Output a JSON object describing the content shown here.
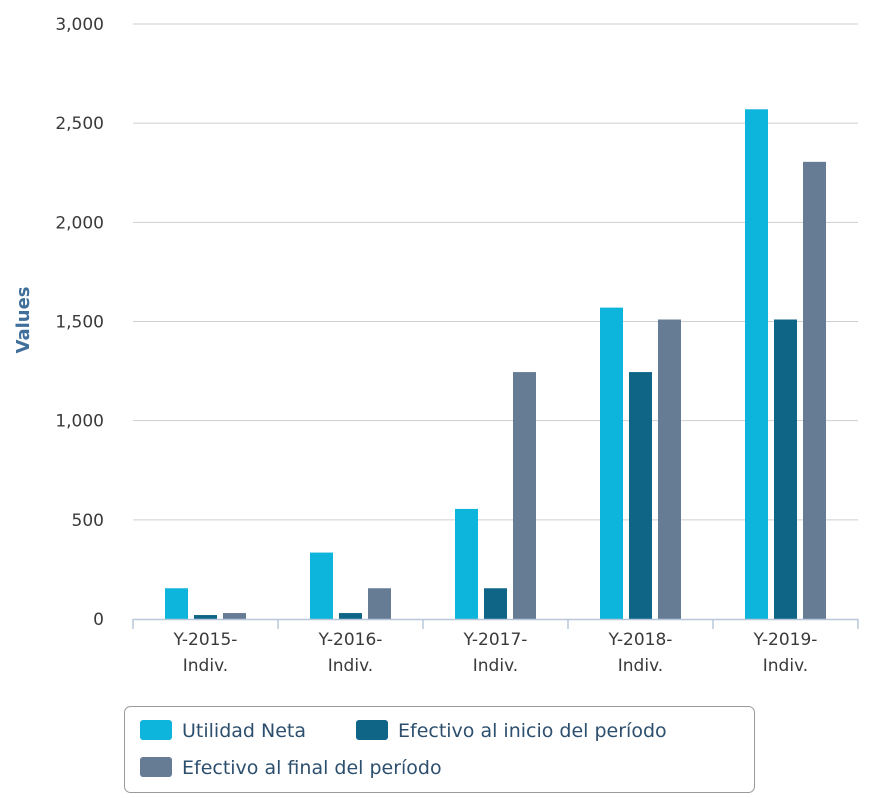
{
  "chart_data": {
    "type": "bar",
    "title": "",
    "xlabel": "",
    "ylabel": "Values",
    "ylim": [
      0,
      3000
    ],
    "yticks": [
      0,
      500,
      1000,
      1500,
      2000,
      2500,
      3000
    ],
    "ytick_labels": [
      "0",
      "500",
      "1,000",
      "1,500",
      "2,000",
      "2,500",
      "3,000"
    ],
    "grid": true,
    "legend_position": "bottom",
    "categories": [
      [
        "Y-2015-",
        "Indiv."
      ],
      [
        "Y-2016-",
        "Indiv."
      ],
      [
        "Y-2017-",
        "Indiv."
      ],
      [
        "Y-2018-",
        "Indiv."
      ],
      [
        "Y-2019-",
        "Indiv."
      ]
    ],
    "series": [
      {
        "name": "Utilidad Neta",
        "color": "#0db4db",
        "values": [
          155,
          335,
          555,
          1570,
          2570
        ]
      },
      {
        "name": "Efectivo al inicio del período",
        "color": "#0e6585",
        "values": [
          20,
          30,
          155,
          1245,
          1510
        ]
      },
      {
        "name": "Efectivo al final del período",
        "color": "#667b94",
        "values": [
          30,
          155,
          1245,
          1510,
          2305
        ]
      }
    ]
  }
}
